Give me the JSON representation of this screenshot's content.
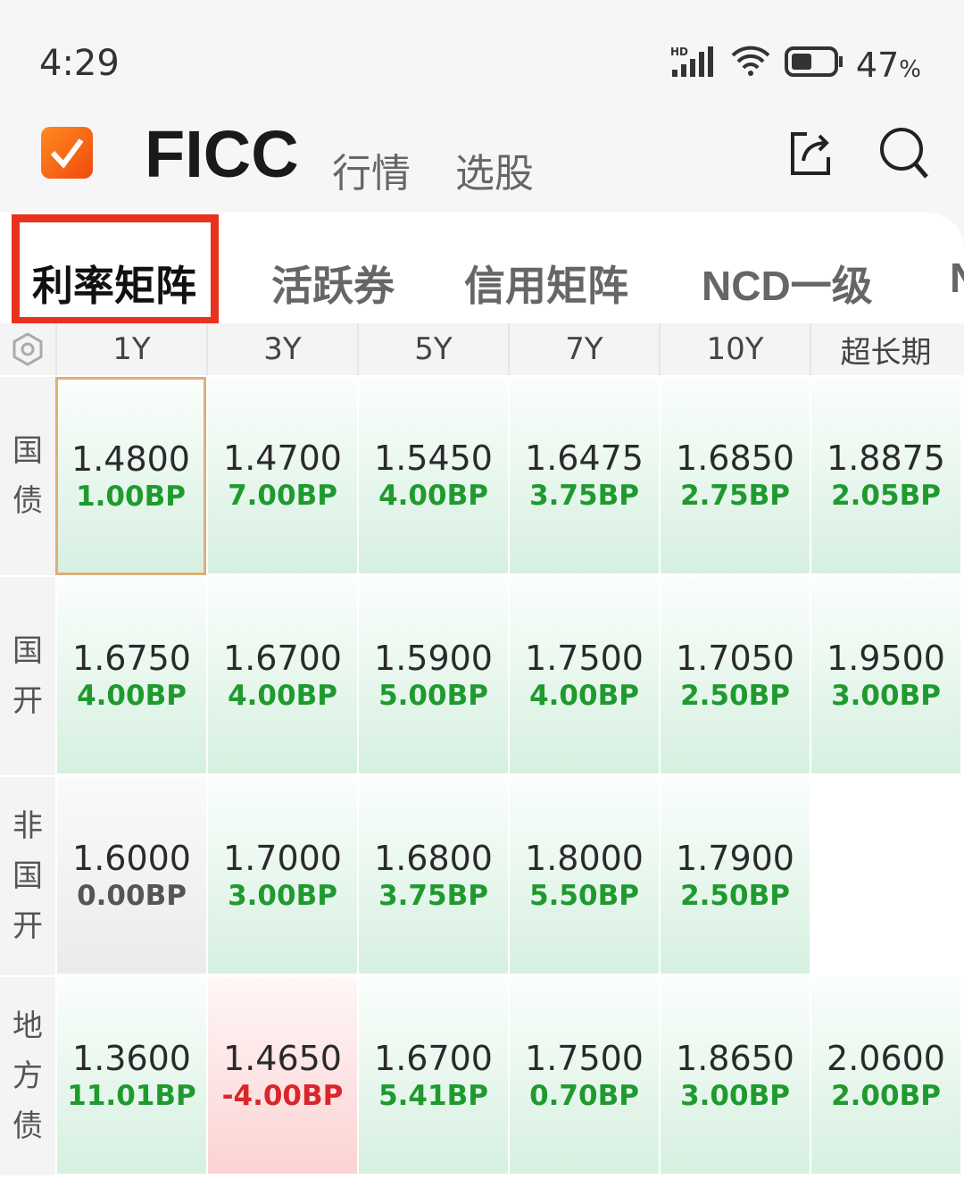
{
  "status": {
    "time": "4:29",
    "network": "HD",
    "battery": "47",
    "battery_unit": "%"
  },
  "header": {
    "title": "FICC",
    "nav": [
      "行情",
      "选股"
    ]
  },
  "tabs": [
    "利率矩阵",
    "活跃券",
    "信用矩阵",
    "NCD一级",
    "N"
  ],
  "active_tab": 0,
  "columns": [
    "1Y",
    "3Y",
    "5Y",
    "7Y",
    "10Y",
    "超长期"
  ],
  "colors": {
    "up": "#1f9a2e",
    "down": "#d8262c",
    "highlight": "#e8321e",
    "accent": "#f26a18"
  },
  "rows": [
    {
      "label": "国债",
      "cells": [
        {
          "rate": "1.4800",
          "change": "1.00BP",
          "dir": "up"
        },
        {
          "rate": "1.4700",
          "change": "7.00BP",
          "dir": "up"
        },
        {
          "rate": "1.5450",
          "change": "4.00BP",
          "dir": "up"
        },
        {
          "rate": "1.6475",
          "change": "3.75BP",
          "dir": "up"
        },
        {
          "rate": "1.6850",
          "change": "2.75BP",
          "dir": "up"
        },
        {
          "rate": "1.8875",
          "change": "2.05BP",
          "dir": "up"
        }
      ]
    },
    {
      "label": "国开",
      "cells": [
        {
          "rate": "1.6750",
          "change": "4.00BP",
          "dir": "up"
        },
        {
          "rate": "1.6700",
          "change": "4.00BP",
          "dir": "up"
        },
        {
          "rate": "1.5900",
          "change": "5.00BP",
          "dir": "up"
        },
        {
          "rate": "1.7500",
          "change": "4.00BP",
          "dir": "up"
        },
        {
          "rate": "1.7050",
          "change": "2.50BP",
          "dir": "up"
        },
        {
          "rate": "1.9500",
          "change": "3.00BP",
          "dir": "up"
        }
      ]
    },
    {
      "label": "非国开",
      "cells": [
        {
          "rate": "1.6000",
          "change": "0.00BP",
          "dir": "flat"
        },
        {
          "rate": "1.7000",
          "change": "3.00BP",
          "dir": "up"
        },
        {
          "rate": "1.6800",
          "change": "3.75BP",
          "dir": "up"
        },
        {
          "rate": "1.8000",
          "change": "5.50BP",
          "dir": "up"
        },
        {
          "rate": "1.7900",
          "change": "2.50BP",
          "dir": "up"
        },
        null
      ]
    },
    {
      "label": "地方债",
      "cells": [
        {
          "rate": "1.3600",
          "change": "11.01BP",
          "dir": "up"
        },
        {
          "rate": "1.4650",
          "change": "-4.00BP",
          "dir": "down"
        },
        {
          "rate": "1.6700",
          "change": "5.41BP",
          "dir": "up"
        },
        {
          "rate": "1.7500",
          "change": "0.70BP",
          "dir": "up"
        },
        {
          "rate": "1.8650",
          "change": "3.00BP",
          "dir": "up"
        },
        {
          "rate": "2.0600",
          "change": "2.00BP",
          "dir": "up"
        }
      ]
    }
  ],
  "selected_cell": {
    "row": 0,
    "col": 0
  }
}
